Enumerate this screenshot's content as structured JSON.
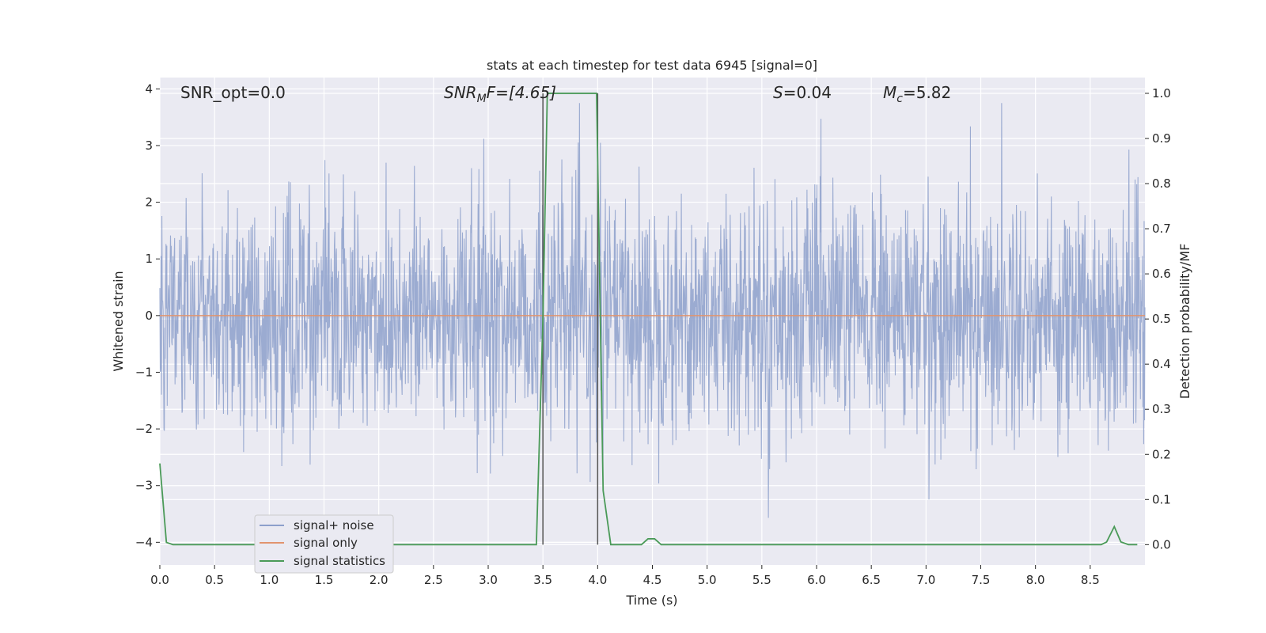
{
  "chart_data": {
    "type": "line",
    "title": "stats at each timestep for test data 6945 [signal=0]",
    "xlabel": "Time (s)",
    "ylabel": "Whitened strain",
    "y2label": "Detection probability/MF",
    "xlim": [
      0,
      9.0
    ],
    "ylim": [
      -4.4,
      4.2
    ],
    "y2lim": [
      -0.045,
      1.035
    ],
    "x_ticks": [
      0.0,
      0.5,
      1.0,
      1.5,
      2.0,
      2.5,
      3.0,
      3.5,
      4.0,
      4.5,
      5.0,
      5.5,
      6.0,
      6.5,
      7.0,
      7.5,
      8.0,
      8.5
    ],
    "x_tick_labels": [
      "0.0",
      "0.5",
      "1.0",
      "1.5",
      "2.0",
      "2.5",
      "3.0",
      "3.5",
      "4.0",
      "4.5",
      "5.0",
      "5.5",
      "6.0",
      "6.5",
      "7.0",
      "7.5",
      "8.0",
      "8.5"
    ],
    "y_ticks": [
      4,
      3,
      2,
      1,
      0,
      -1,
      -2,
      -3,
      -4
    ],
    "y_tick_labels": [
      "4",
      "3",
      "2",
      "1",
      "0",
      "−1",
      "−2",
      "−3",
      "−4"
    ],
    "y2_ticks": [
      1.0,
      0.9,
      0.8,
      0.7,
      0.6,
      0.5,
      0.4,
      0.3,
      0.2,
      0.1,
      0.0
    ],
    "y2_tick_labels": [
      "1.0",
      "0.9",
      "0.8",
      "0.7",
      "0.6",
      "0.5",
      "0.4",
      "0.3",
      "0.2",
      "0.1",
      "0.0"
    ],
    "grid": true,
    "legend_position": "lower-left",
    "annotations": {
      "snr_opt": "SNR_opt=0.0",
      "snr_mf_main": "SNR",
      "snr_mf_sub": "M",
      "snr_mf_tail": "F=[4.65]",
      "s_main": "S",
      "s_tail": "=0.04",
      "mc_main": "M",
      "mc_sub": "c",
      "mc_tail": "=5.82"
    },
    "vertical_lines_x": [
      3.5,
      4.0
    ],
    "series": [
      {
        "name": "signal+ noise",
        "color": "#8da0cb",
        "axis": "left",
        "description_values": "dense noise, approx. gaussian, range about -3.9 to 3.7"
      },
      {
        "name": "signal only",
        "color": "#e1946e",
        "axis": "left",
        "x": [
          0.0,
          9.0
        ],
        "y": [
          0.0,
          0.0
        ]
      },
      {
        "name": "signal statistics",
        "color": "#4a9a58",
        "axis": "right",
        "x": [
          0.0,
          0.06,
          0.12,
          0.5,
          1.0,
          1.5,
          2.0,
          2.5,
          3.0,
          3.44,
          3.5,
          3.54,
          3.58,
          3.7,
          3.8,
          3.9,
          3.99,
          4.05,
          4.12,
          4.2,
          4.3,
          4.4,
          4.46,
          4.52,
          4.58,
          4.62,
          4.7,
          5.0,
          6.0,
          7.0,
          8.0,
          8.6,
          8.65,
          8.72,
          8.78,
          8.85,
          8.93
        ],
        "y": [
          0.18,
          0.005,
          0.0,
          0.0,
          0.0,
          0.0,
          0.0,
          0.0,
          0.0,
          0.0,
          0.5,
          1.0,
          1.0,
          1.0,
          1.0,
          1.0,
          1.0,
          0.12,
          0.0,
          0.0,
          0.0,
          0.0,
          0.013,
          0.013,
          0.0,
          0.0,
          0.0,
          0.0,
          0.0,
          0.0,
          0.0,
          0.0,
          0.006,
          0.04,
          0.006,
          0.0,
          0.0
        ]
      }
    ]
  }
}
